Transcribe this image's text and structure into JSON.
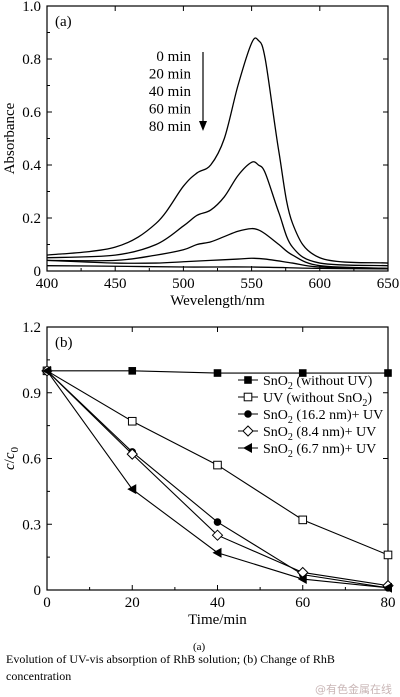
{
  "chart_data": [
    {
      "panel_label": "(a)",
      "type": "line",
      "xlabel": "Wevelength/nm",
      "ylabel": "Absorbance",
      "xlim": [
        400,
        650
      ],
      "ylim": [
        0,
        1.0
      ],
      "xticks": [
        "400",
        "450",
        "500",
        "550",
        "600",
        "650"
      ],
      "yticks": [
        "0",
        "0.2",
        "0.4",
        "0.6",
        "0.8",
        "1.0"
      ],
      "legend": [
        "0 min",
        "20 min",
        "40 min",
        "60 min",
        "80 min"
      ],
      "legend_placement": "top-left, with downward arrow",
      "series": [
        {
          "name": "0 min",
          "x": [
            400,
            450,
            480,
            500,
            510,
            520,
            530,
            540,
            550,
            555,
            560,
            570,
            580,
            600,
            650
          ],
          "y": [
            0.06,
            0.09,
            0.18,
            0.32,
            0.37,
            0.4,
            0.5,
            0.7,
            0.86,
            0.87,
            0.8,
            0.45,
            0.18,
            0.05,
            0.03
          ]
        },
        {
          "name": "20 min",
          "x": [
            400,
            450,
            480,
            500,
            510,
            520,
            530,
            540,
            550,
            555,
            560,
            570,
            580,
            600,
            650
          ],
          "y": [
            0.05,
            0.06,
            0.1,
            0.17,
            0.21,
            0.23,
            0.28,
            0.36,
            0.41,
            0.4,
            0.37,
            0.22,
            0.09,
            0.03,
            0.02
          ]
        },
        {
          "name": "40 min",
          "x": [
            400,
            450,
            480,
            500,
            510,
            520,
            530,
            540,
            550,
            555,
            560,
            570,
            580,
            600,
            650
          ],
          "y": [
            0.04,
            0.04,
            0.06,
            0.08,
            0.1,
            0.11,
            0.13,
            0.15,
            0.16,
            0.155,
            0.14,
            0.1,
            0.06,
            0.02,
            0.01
          ]
        },
        {
          "name": "60 min",
          "x": [
            400,
            450,
            480,
            500,
            520,
            540,
            550,
            560,
            580,
            600,
            650
          ],
          "y": [
            0.04,
            0.03,
            0.03,
            0.035,
            0.04,
            0.045,
            0.048,
            0.045,
            0.03,
            0.015,
            0.01
          ]
        },
        {
          "name": "80 min",
          "x": [
            400,
            450,
            500,
            550,
            600,
            650
          ],
          "y": [
            0.02,
            0.018,
            0.015,
            0.015,
            0.01,
            0.008
          ]
        }
      ]
    },
    {
      "panel_label": "(b)",
      "type": "line",
      "xlabel": "Time/min",
      "ylabel": "c/c0",
      "xlim": [
        0,
        80
      ],
      "ylim": [
        0,
        1.2
      ],
      "xticks": [
        "0",
        "20",
        "40",
        "60",
        "80"
      ],
      "yticks": [
        "0",
        "0.3",
        "0.6",
        "0.9",
        "1.2"
      ],
      "legend_placement": "top-right",
      "series": [
        {
          "name": "SnO2 (without UV)",
          "label_main": "SnO",
          "label_sub": "2",
          "label_rest": " (without UV)",
          "marker": "square-filled",
          "x": [
            0,
            20,
            40,
            60,
            80
          ],
          "y": [
            1.0,
            1.0,
            0.99,
            0.99,
            0.99
          ]
        },
        {
          "name": "UV (without SnO2)",
          "label_main": "UV  (without SnO",
          "label_sub": "2",
          "label_rest": ")",
          "marker": "square-open",
          "x": [
            0,
            20,
            40,
            60,
            80
          ],
          "y": [
            1.0,
            0.77,
            0.57,
            0.32,
            0.16
          ]
        },
        {
          "name": "SnO2 (16.2 nm)+ UV",
          "label_main": "SnO",
          "label_sub": "2",
          "label_rest": " (16.2 nm)+ UV",
          "marker": "circle-filled",
          "x": [
            0,
            20,
            40,
            60,
            80
          ],
          "y": [
            1.0,
            0.63,
            0.31,
            0.07,
            0.01
          ]
        },
        {
          "name": "SnO2 (8.4 nm)+ UV",
          "label_main": "SnO",
          "label_sub": "2",
          "label_rest": " (8.4 nm)+ UV",
          "marker": "diamond-open",
          "x": [
            0,
            20,
            40,
            60,
            80
          ],
          "y": [
            1.0,
            0.62,
            0.25,
            0.08,
            0.02
          ]
        },
        {
          "name": "SnO2 (6.7 nm)+ UV",
          "label_main": "SnO",
          "label_sub": "2",
          "label_rest": " (6.7 nm)+ UV",
          "marker": "triangle-left-filled",
          "x": [
            0,
            20,
            40,
            60,
            80
          ],
          "y": [
            1.0,
            0.46,
            0.17,
            0.05,
            0.01
          ]
        }
      ]
    }
  ],
  "sub_caption": "(a)",
  "caption": "Evolution of UV-vis absorption of RhB solution; (b) Change of RhB concentration",
  "watermark": "@有色金属在线"
}
